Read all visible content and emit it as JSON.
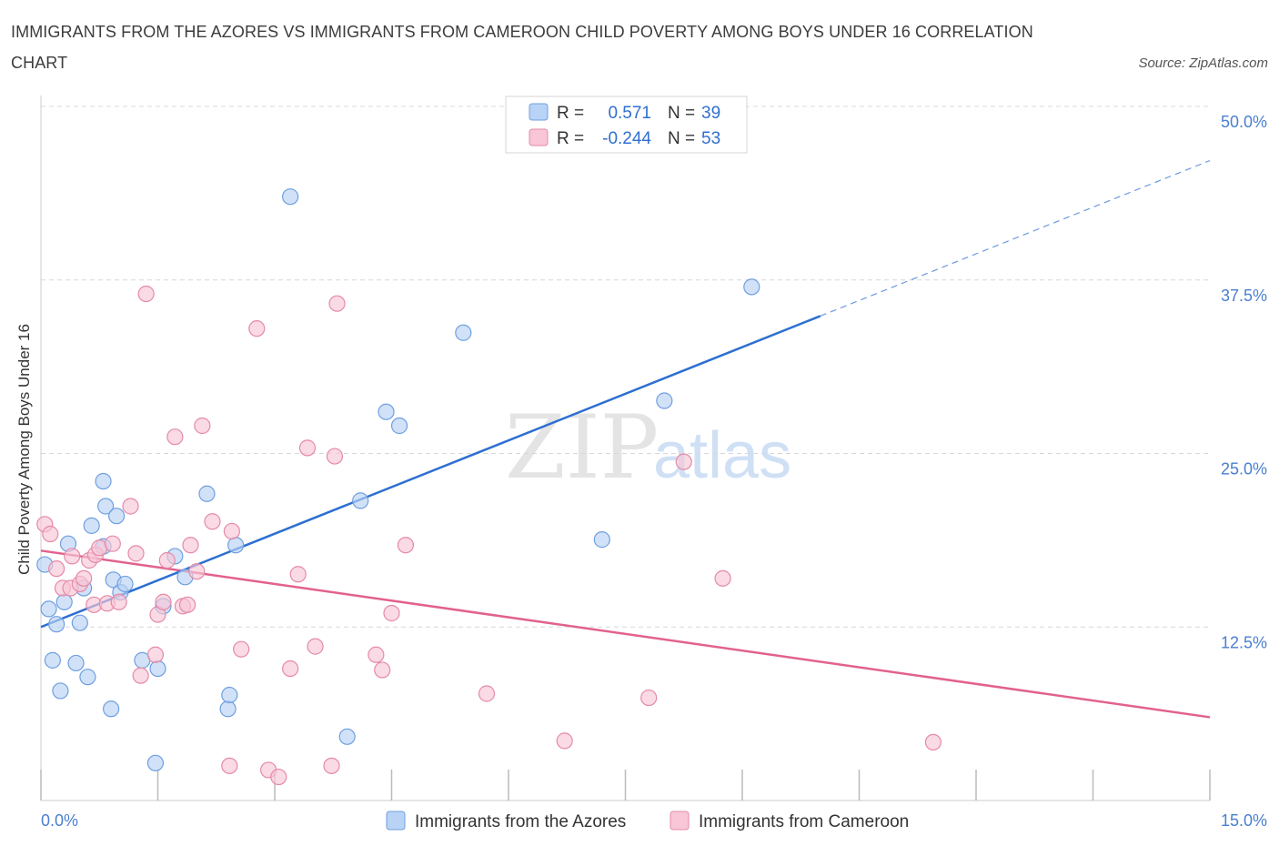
{
  "title": "IMMIGRANTS FROM THE AZORES VS IMMIGRANTS FROM CAMEROON CHILD POVERTY AMONG BOYS UNDER 16 CORRELATION CHART",
  "source": "Source: ZipAtlas.com",
  "watermark": {
    "zip": "ZIP",
    "atlas": "atlas"
  },
  "legend": {
    "rows": [
      {
        "r_label": "R =",
        "r_value": "0.571",
        "n_label": "N =",
        "n_value": "39"
      },
      {
        "r_label": "R =",
        "r_value": "-0.244",
        "n_label": "N =",
        "n_value": "53"
      }
    ]
  },
  "bottom_legend": [
    "Immigrants from the Azores",
    "Immigrants from Cameroon"
  ],
  "colors": {
    "azores_fill": "#b8d3f5",
    "azores_stroke": "#6f9fe0",
    "azores_line": "#2d6fd0",
    "cameroon_fill": "#f8c6d6",
    "cameroon_stroke": "#e58aa8",
    "cameroon_line": "#e2618e",
    "tick_text": "#4a7fd0",
    "grid": "#d8d8d8"
  },
  "chart_data": {
    "type": "scatter",
    "xlabel": "",
    "ylabel": "Child Poverty Among Boys Under 16",
    "xlim": [
      0,
      15
    ],
    "ylim": [
      0,
      50
    ],
    "x_tick_labels": [
      "0.0%",
      "15.0%"
    ],
    "y_ticks": [
      12.5,
      25,
      37.5,
      50
    ],
    "y_tick_labels": [
      "12.5%",
      "25.0%",
      "37.5%",
      "50.0%"
    ],
    "grid": true,
    "series": [
      {
        "name": "Immigrants from the Azores",
        "points": [
          [
            0.05,
            17.0
          ],
          [
            0.1,
            13.8
          ],
          [
            0.15,
            10.1
          ],
          [
            0.2,
            12.7
          ],
          [
            0.25,
            7.9
          ],
          [
            0.3,
            14.3
          ],
          [
            0.35,
            18.5
          ],
          [
            0.45,
            9.9
          ],
          [
            0.5,
            12.8
          ],
          [
            0.55,
            15.3
          ],
          [
            0.6,
            8.9
          ],
          [
            0.65,
            19.8
          ],
          [
            0.8,
            18.3
          ],
          [
            0.8,
            23.0
          ],
          [
            0.83,
            21.2
          ],
          [
            0.9,
            6.6
          ],
          [
            0.93,
            15.9
          ],
          [
            0.97,
            20.5
          ],
          [
            1.02,
            15.0
          ],
          [
            1.08,
            15.6
          ],
          [
            1.3,
            10.1
          ],
          [
            1.47,
            2.7
          ],
          [
            1.5,
            9.5
          ],
          [
            1.57,
            14.0
          ],
          [
            1.72,
            17.6
          ],
          [
            1.85,
            16.1
          ],
          [
            2.13,
            22.1
          ],
          [
            2.4,
            6.6
          ],
          [
            2.42,
            7.6
          ],
          [
            2.5,
            18.4
          ],
          [
            3.2,
            43.5
          ],
          [
            3.93,
            4.6
          ],
          [
            4.1,
            21.6
          ],
          [
            4.43,
            28.0
          ],
          [
            4.6,
            27.0
          ],
          [
            5.42,
            33.7
          ],
          [
            7.2,
            18.8
          ],
          [
            8.0,
            28.8
          ],
          [
            9.12,
            37.0
          ]
        ],
        "trend": {
          "x": [
            0,
            10.0
          ],
          "y": [
            12.5,
            34.9
          ]
        },
        "trend_extension": {
          "x": [
            10.0,
            15.0
          ],
          "y": [
            34.9,
            46.1
          ]
        }
      },
      {
        "name": "Immigrants from Cameroon",
        "points": [
          [
            0.05,
            19.9
          ],
          [
            0.12,
            19.2
          ],
          [
            0.2,
            16.7
          ],
          [
            0.28,
            15.3
          ],
          [
            0.38,
            15.3
          ],
          [
            0.4,
            17.6
          ],
          [
            0.5,
            15.6
          ],
          [
            0.55,
            16.0
          ],
          [
            0.62,
            17.3
          ],
          [
            0.68,
            14.1
          ],
          [
            0.7,
            17.7
          ],
          [
            0.75,
            18.2
          ],
          [
            0.85,
            14.2
          ],
          [
            0.92,
            18.5
          ],
          [
            1.0,
            14.3
          ],
          [
            1.15,
            21.2
          ],
          [
            1.22,
            17.8
          ],
          [
            1.28,
            9.0
          ],
          [
            1.35,
            36.5
          ],
          [
            1.47,
            10.5
          ],
          [
            1.5,
            13.4
          ],
          [
            1.57,
            14.3
          ],
          [
            1.62,
            17.3
          ],
          [
            1.72,
            26.2
          ],
          [
            1.82,
            14.0
          ],
          [
            1.88,
            14.1
          ],
          [
            1.92,
            18.4
          ],
          [
            2.0,
            16.5
          ],
          [
            2.07,
            27.0
          ],
          [
            2.2,
            20.1
          ],
          [
            2.42,
            2.5
          ],
          [
            2.45,
            19.4
          ],
          [
            2.57,
            10.9
          ],
          [
            2.77,
            34.0
          ],
          [
            2.92,
            2.2
          ],
          [
            3.05,
            1.7
          ],
          [
            3.2,
            9.5
          ],
          [
            3.3,
            16.3
          ],
          [
            3.42,
            25.4
          ],
          [
            3.52,
            11.1
          ],
          [
            3.73,
            2.5
          ],
          [
            3.77,
            24.8
          ],
          [
            3.8,
            35.8
          ],
          [
            4.3,
            10.5
          ],
          [
            4.38,
            9.4
          ],
          [
            4.5,
            13.5
          ],
          [
            4.68,
            18.4
          ],
          [
            5.72,
            7.7
          ],
          [
            6.72,
            4.3
          ],
          [
            7.8,
            7.4
          ],
          [
            8.25,
            24.4
          ],
          [
            8.75,
            16.0
          ],
          [
            11.45,
            4.2
          ]
        ],
        "trend": {
          "x": [
            0,
            15.0
          ],
          "y": [
            18.0,
            6.0
          ]
        }
      }
    ]
  }
}
